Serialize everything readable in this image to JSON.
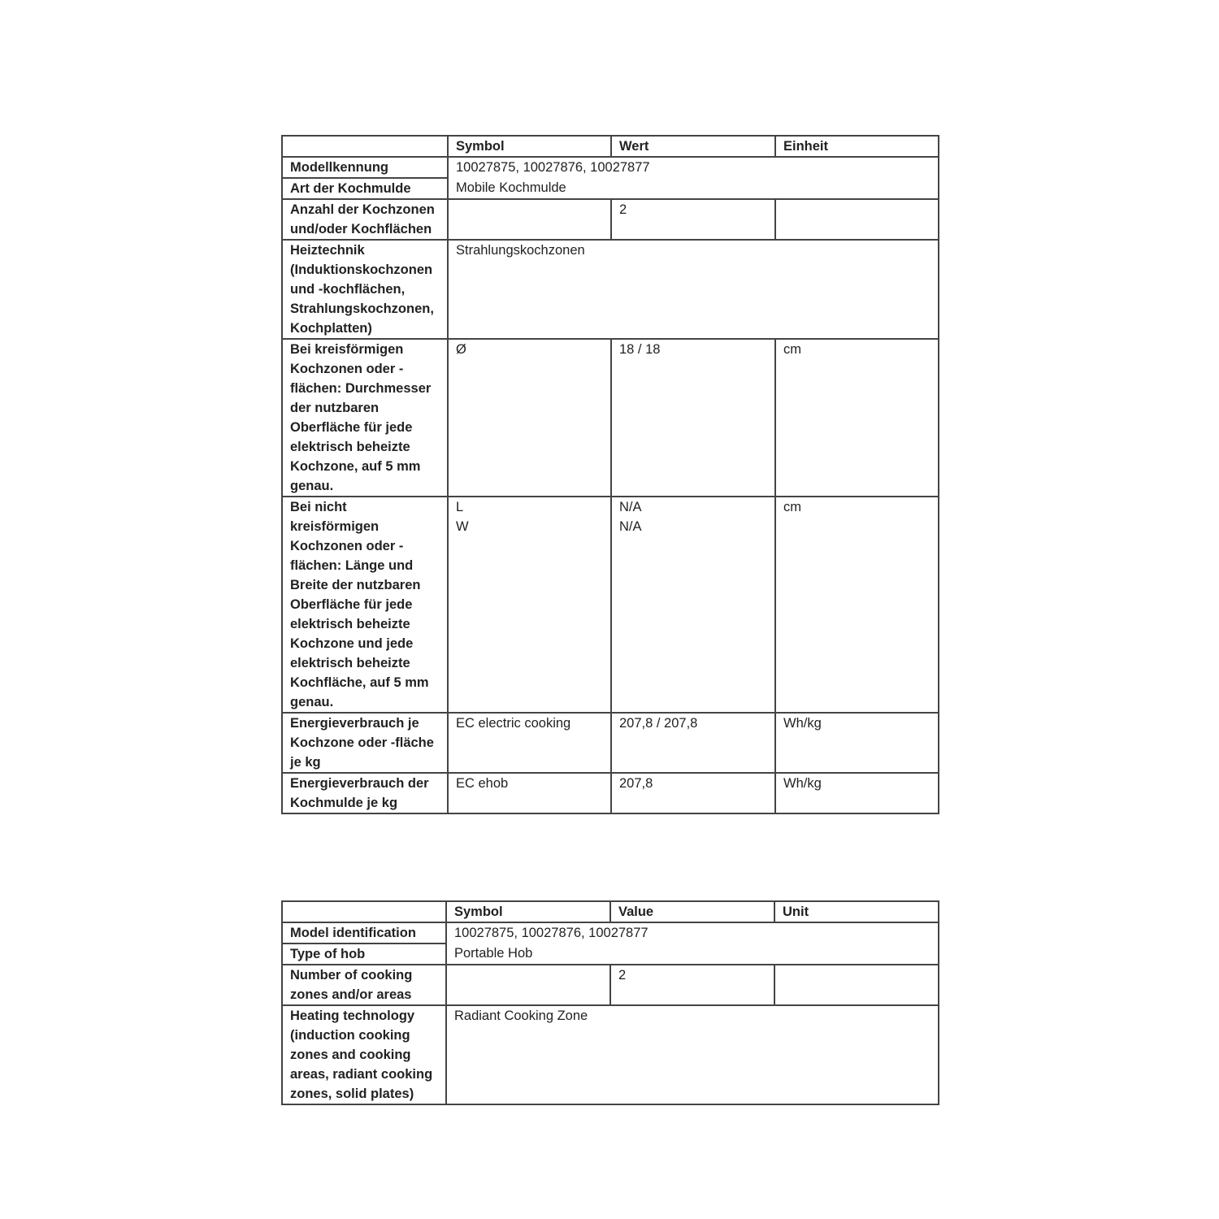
{
  "table_de": {
    "headers": [
      "",
      "Symbol",
      "Wert",
      "Einheit"
    ],
    "model_label": "Modellkennung",
    "model_value": "10027875, 10027876, 10027877",
    "type_label": "Art der Kochmulde",
    "type_value": "Mobile Kochmulde",
    "zones_label": "Anzahl der Kochzonen\nund/oder Kochflächen",
    "zones_value": "2",
    "tech_label": "Heiztechnik\n(Induktionskochzonen\nund -kochflächen,\nStrahlungskochzonen,\nKochplatten)",
    "tech_value": "Strahlungskochzonen",
    "circ_label": "Bei kreisförmigen\nKochzonen oder -\nflächen: Durchmesser\nder nutzbaren\nOberfläche für jede\nelektrisch beheizte\nKochzone, auf 5 mm\ngenau.",
    "circ_symbol": "Ø",
    "circ_value": "18 / 18",
    "circ_unit": "cm",
    "noncirc_label": "Bei nicht\nkreisförmigen\nKochzonen oder -\nflächen: Länge und\nBreite der nutzbaren\nOberfläche für jede\nelektrisch beheizte\nKochzone und jede\nelektrisch beheizte\nKochfläche, auf 5 mm\ngenau.",
    "noncirc_symbol": "L\nW",
    "noncirc_value": "N/A\nN/A",
    "noncirc_unit": "cm",
    "ec_zone_label": "Energieverbrauch je\nKochzone oder -fläche\nje kg",
    "ec_zone_symbol": "EC electric cooking",
    "ec_zone_value": "207,8 / 207,8",
    "ec_zone_unit": "Wh/kg",
    "ec_hob_label": "Energieverbrauch der\nKochmulde je kg",
    "ec_hob_symbol": "EC ehob",
    "ec_hob_value": "207,8",
    "ec_hob_unit": "Wh/kg"
  },
  "table_en": {
    "headers": [
      "",
      "Symbol",
      "Value",
      "Unit"
    ],
    "model_label": "Model identification",
    "model_value": "10027875, 10027876, 10027877",
    "type_label": "Type of hob",
    "type_value": "Portable Hob",
    "zones_label": "Number of cooking\nzones and/or areas",
    "zones_value": "2",
    "tech_label": "Heating technology\n(induction cooking\nzones and cooking\nareas, radiant cooking\nzones, solid plates)",
    "tech_value": "Radiant Cooking Zone"
  }
}
